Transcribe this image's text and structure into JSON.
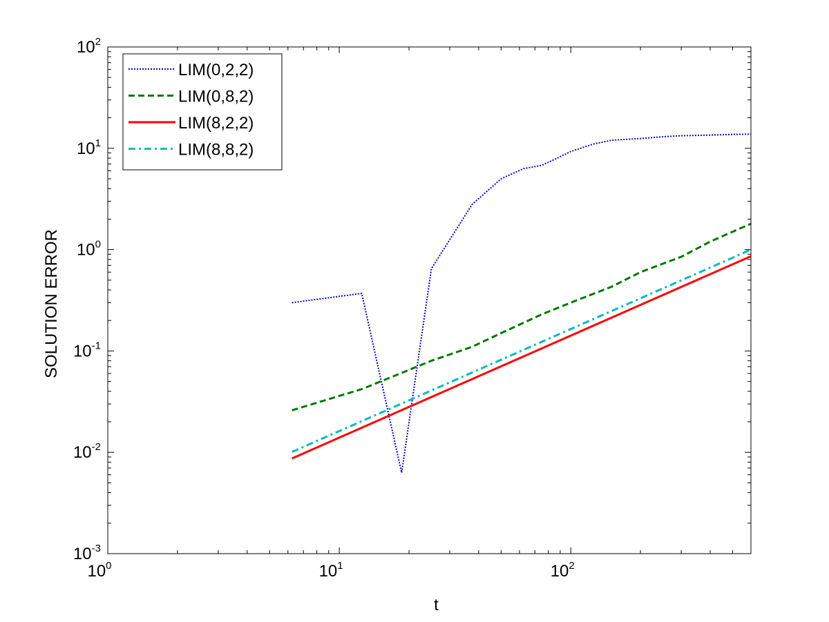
{
  "chart_data": {
    "type": "line",
    "title": "",
    "xlabel": "t",
    "ylabel": "SOLUTION ERROR",
    "xscale": "log",
    "yscale": "log",
    "xlim": [
      1,
      600
    ],
    "ylim": [
      0.001,
      100
    ],
    "grid": false,
    "legend_position": "top-left",
    "x_ticks": [
      {
        "base": "10",
        "exp": "0",
        "value": 1
      },
      {
        "base": "10",
        "exp": "1",
        "value": 10
      },
      {
        "base": "10",
        "exp": "2",
        "value": 100
      }
    ],
    "y_ticks": [
      {
        "base": "10",
        "exp": "-3",
        "value": 0.001
      },
      {
        "base": "10",
        "exp": "-2",
        "value": 0.01
      },
      {
        "base": "10",
        "exp": "-1",
        "value": 0.1
      },
      {
        "base": "10",
        "exp": "0",
        "value": 1
      },
      {
        "base": "10",
        "exp": "1",
        "value": 10
      },
      {
        "base": "10",
        "exp": "2",
        "value": 100
      }
    ],
    "series": [
      {
        "name": "LIM(0,2,2)",
        "color": "#0000cc",
        "style": "dotted",
        "x": [
          6.25,
          12.5,
          18.6,
          25,
          37.5,
          50,
          62.5,
          75,
          87.5,
          100,
          125,
          150,
          200,
          250,
          300,
          400,
          500,
          600
        ],
        "y": [
          0.3,
          0.37,
          0.0063,
          0.65,
          2.8,
          5.0,
          6.3,
          6.8,
          8.0,
          9.3,
          11.0,
          12.0,
          12.5,
          13.0,
          13.3,
          13.5,
          13.7,
          13.8
        ]
      },
      {
        "name": "LIM(0,8,2)",
        "color": "#007700",
        "style": "dashed",
        "x": [
          6.25,
          12.5,
          25,
          37.5,
          50,
          75,
          100,
          150,
          200,
          300,
          400,
          500,
          600
        ],
        "y": [
          0.026,
          0.042,
          0.08,
          0.11,
          0.15,
          0.23,
          0.3,
          0.43,
          0.6,
          0.85,
          1.2,
          1.5,
          1.8
        ]
      },
      {
        "name": "LIM(8,2,2)",
        "color": "#ff0000",
        "style": "solid",
        "x": [
          6.25,
          600
        ],
        "y": [
          0.0087,
          0.86
        ]
      },
      {
        "name": "LIM(8,8,2)",
        "color": "#00bbbb",
        "style": "dashdot",
        "x": [
          6.25,
          600
        ],
        "y": [
          0.0101,
          1.0
        ]
      }
    ]
  }
}
